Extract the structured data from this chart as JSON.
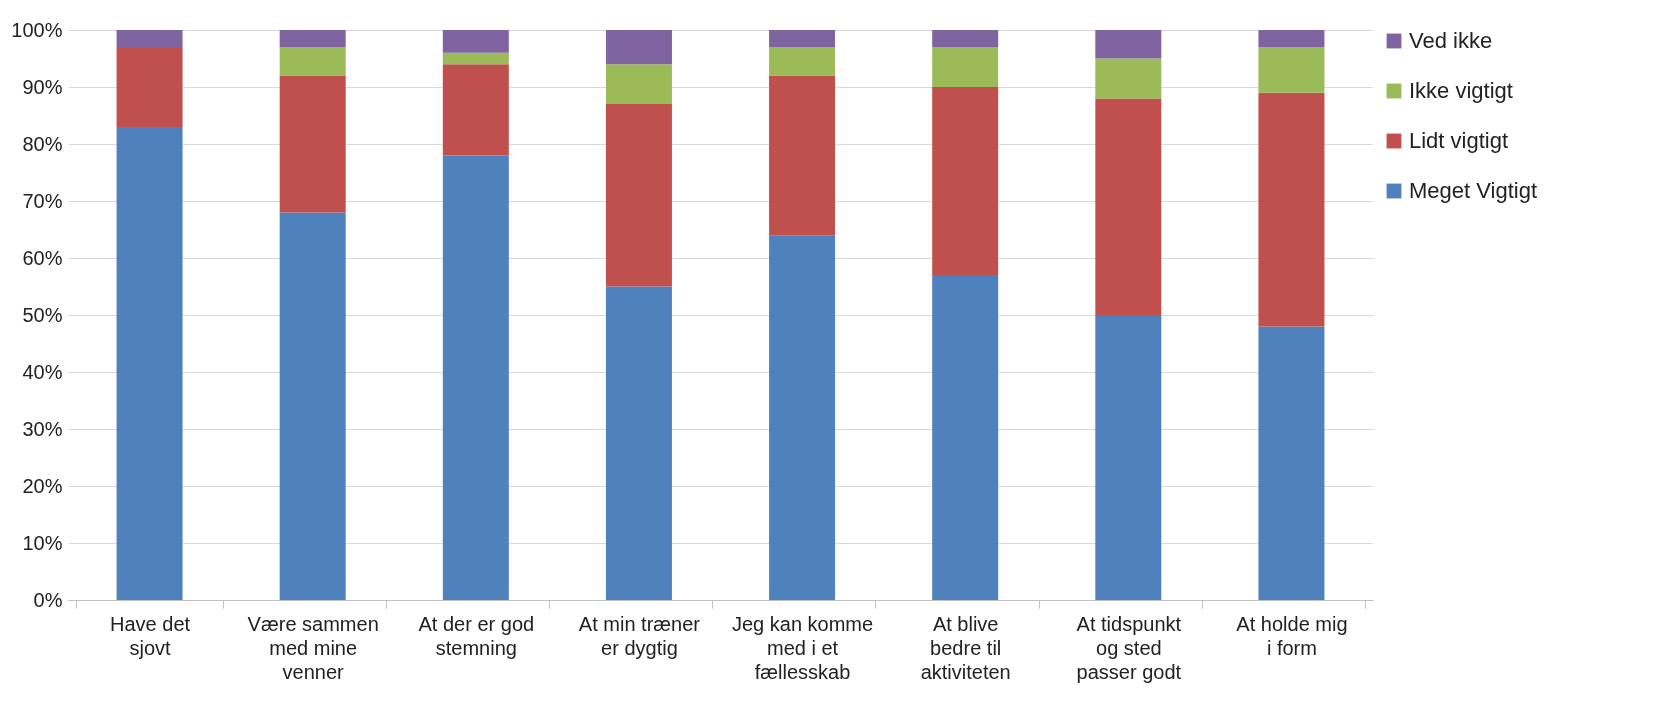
{
  "chart_data": {
    "type": "bar",
    "stacked": true,
    "categories": [
      "Have det sjovt",
      "Være sammen med mine venner",
      "At der er god stemning",
      "At min træner er dygtig",
      "Jeg kan komme med i et fællesskab",
      "At blive bedre til aktiviteten",
      "At tidspunkt og sted passer godt",
      "At holde mig i form"
    ],
    "series": [
      {
        "name": "Meget Vigtigt",
        "color": "#4f81bd",
        "values": [
          83,
          68,
          78,
          55,
          64,
          57,
          50,
          48
        ]
      },
      {
        "name": "Lidt vigtigt",
        "color": "#c0504d",
        "values": [
          14,
          24,
          16,
          32,
          28,
          33,
          38,
          41
        ]
      },
      {
        "name": "Ikke vigtigt",
        "color": "#9bbb59",
        "values": [
          0,
          5,
          2,
          7,
          5,
          7,
          7,
          8
        ]
      },
      {
        "name": "Ved ikke",
        "color": "#8064a2",
        "values": [
          3,
          3,
          4,
          6,
          3,
          3,
          5,
          3
        ]
      }
    ],
    "ylim": [
      0,
      100
    ],
    "yticks": [
      {
        "value": 0,
        "label": "0%"
      },
      {
        "value": 10,
        "label": "10%"
      },
      {
        "value": 20,
        "label": "20%"
      },
      {
        "value": 30,
        "label": "30%"
      },
      {
        "value": 40,
        "label": "40%"
      },
      {
        "value": 50,
        "label": "50%"
      },
      {
        "value": 60,
        "label": "60%"
      },
      {
        "value": 70,
        "label": "70%"
      },
      {
        "value": 80,
        "label": "80%"
      },
      {
        "value": 90,
        "label": "90%"
      },
      {
        "value": 100,
        "label": "100%"
      }
    ],
    "grid": "y",
    "legend": "right"
  }
}
